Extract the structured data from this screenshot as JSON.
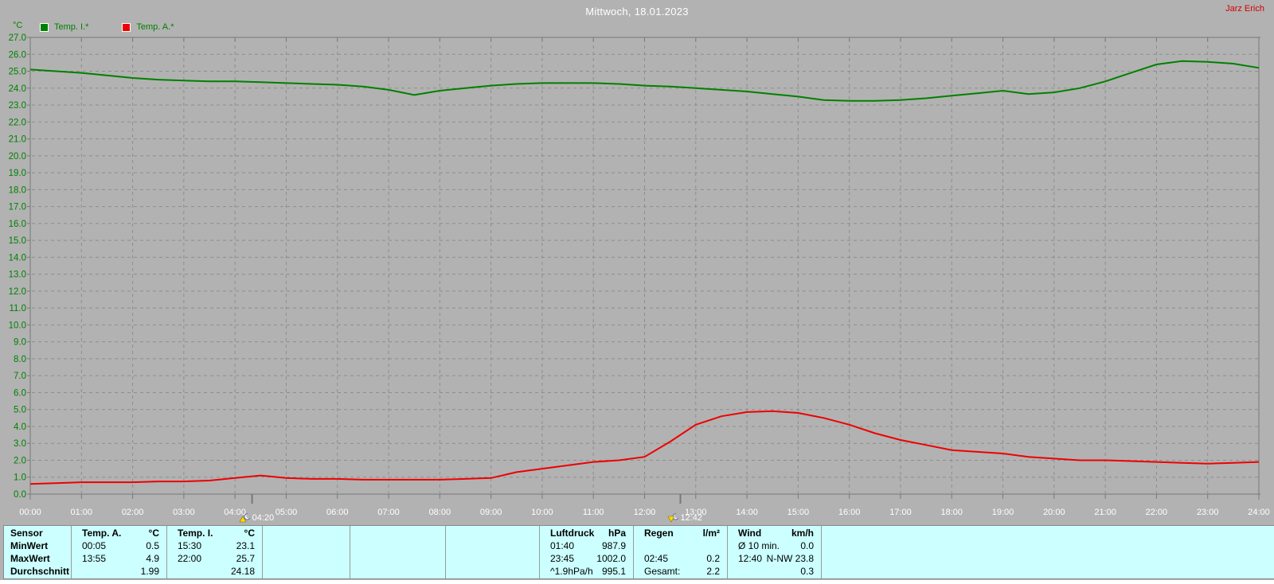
{
  "header": {
    "title": "Mittwoch, 18.01.2023",
    "watermark": "Jarz Erich"
  },
  "colors": {
    "background": "#b2b2b2",
    "grid": "#8d8d8d",
    "axis_border": "#787878",
    "axis_label_green": "#008000",
    "tick_label_white": "#ffffff",
    "table_background": "#ccffff",
    "watermark_red": "#d40000"
  },
  "chart_data": {
    "type": "line",
    "title": "Mittwoch, 18.01.2023",
    "y_unit": "°C",
    "ylim": [
      0,
      27
    ],
    "ytick_step": 1,
    "yticks": [
      "0.0",
      "1.0",
      "2.0",
      "3.0",
      "4.0",
      "5.0",
      "6.0",
      "7.0",
      "8.0",
      "9.0",
      "10.0",
      "11.0",
      "12.0",
      "13.0",
      "14.0",
      "15.0",
      "16.0",
      "17.0",
      "18.0",
      "19.0",
      "20.0",
      "21.0",
      "22.0",
      "23.0",
      "24.0",
      "25.0",
      "26.0",
      "27.0"
    ],
    "xticks": [
      "00:00",
      "01:00",
      "02:00",
      "03:00",
      "04:00",
      "05:00",
      "06:00",
      "07:00",
      "08:00",
      "09:00",
      "10:00",
      "11:00",
      "12:00",
      "13:00",
      "14:00",
      "15:00",
      "16:00",
      "17:00",
      "18:00",
      "19:00",
      "20:00",
      "21:00",
      "22:00",
      "23:00",
      "24:00"
    ],
    "grid": "dashed",
    "legend_position": "top-left",
    "x_start_hours": 0,
    "x_step_hours": 0.5,
    "series": [
      {
        "name": "Temp. I.*",
        "color": "#008000",
        "values": [
          25.1,
          25.0,
          24.9,
          24.75,
          24.6,
          24.5,
          24.45,
          24.4,
          24.4,
          24.35,
          24.3,
          24.25,
          24.2,
          24.1,
          23.9,
          23.6,
          23.85,
          24.0,
          24.15,
          24.25,
          24.3,
          24.3,
          24.3,
          24.25,
          24.15,
          24.1,
          24.0,
          23.9,
          23.8,
          23.65,
          23.5,
          23.3,
          23.25,
          23.25,
          23.3,
          23.4,
          23.55,
          23.7,
          23.85,
          23.65,
          23.75,
          24.0,
          24.4,
          24.9,
          25.4,
          25.6,
          25.55,
          25.45,
          25.2
        ]
      },
      {
        "name": "Temp. A.*",
        "color": "#ee0000",
        "values": [
          0.6,
          0.65,
          0.7,
          0.7,
          0.7,
          0.75,
          0.75,
          0.8,
          0.95,
          1.1,
          0.95,
          0.9,
          0.9,
          0.85,
          0.85,
          0.85,
          0.85,
          0.9,
          0.95,
          1.3,
          1.5,
          1.7,
          1.9,
          2.0,
          2.2,
          3.1,
          4.1,
          4.6,
          4.85,
          4.9,
          4.8,
          4.5,
          4.1,
          3.6,
          3.2,
          2.9,
          2.6,
          2.5,
          2.4,
          2.2,
          2.1,
          2.0,
          2.0,
          1.95,
          1.9,
          1.85,
          1.8,
          1.85,
          1.9
        ]
      }
    ],
    "markers": [
      {
        "time": "04:20",
        "icon": "moonrise"
      },
      {
        "time": "12:42",
        "icon": "moonset"
      }
    ]
  },
  "table": {
    "row_labels": [
      "Sensor",
      "MinWert",
      "MaxWert",
      "Durchschnitt"
    ],
    "columns": [
      {
        "title": "Temp. A.",
        "unit": "°C",
        "rows": [
          [
            "00:05",
            "0.5"
          ],
          [
            "13:55",
            "4.9"
          ],
          [
            "",
            "1.99"
          ]
        ]
      },
      {
        "title": "Temp. I.",
        "unit": "°C",
        "rows": [
          [
            "15:30",
            "23.1"
          ],
          [
            "22:00",
            "25.7"
          ],
          [
            "",
            "24.18"
          ]
        ]
      },
      {
        "title": "",
        "unit": "",
        "rows": [
          [
            "",
            ""
          ],
          [
            "",
            ""
          ],
          [
            "",
            ""
          ]
        ]
      },
      {
        "title": "",
        "unit": "",
        "rows": [
          [
            "",
            ""
          ],
          [
            "",
            ""
          ],
          [
            "",
            ""
          ]
        ]
      },
      {
        "title": "",
        "unit": "",
        "rows": [
          [
            "",
            ""
          ],
          [
            "",
            ""
          ],
          [
            "",
            ""
          ]
        ]
      },
      {
        "title": "Luftdruck",
        "unit": "hPa",
        "rows": [
          [
            "01:40",
            "987.9"
          ],
          [
            "23:45",
            "1002.0"
          ],
          [
            "^1.9hPa/h",
            "995.1"
          ]
        ]
      },
      {
        "title": "Regen",
        "unit": "l/m²",
        "rows": [
          [
            "",
            ""
          ],
          [
            "02:45",
            "0.2"
          ],
          [
            "Gesamt:",
            "2.2"
          ]
        ]
      },
      {
        "title": "Wind",
        "unit": "km/h",
        "rows": [
          [
            "Ø 10 min.",
            "0.0"
          ],
          [
            "12:40",
            "N-NW 23.8"
          ],
          [
            "",
            "0.3"
          ]
        ]
      }
    ]
  }
}
